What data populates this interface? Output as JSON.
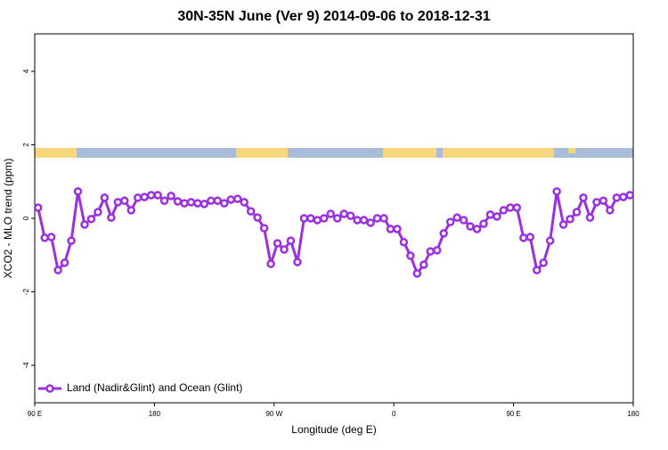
{
  "chart_data": {
    "type": "line",
    "title": "30N-35N June (Ver 9)   2014-09-06 to 2018-12-31",
    "x_label": "Longitude (deg E)",
    "y_label": "XCO2 - MLO trend (ppm)",
    "x": [
      92.5,
      97.5,
      102.5,
      107.5,
      112.5,
      117.5,
      122.5,
      127.5,
      132.5,
      137.5,
      142.5,
      147.5,
      152.5,
      157.5,
      162.5,
      167.5,
      172.5,
      177.5,
      182.5,
      187.5,
      192.5,
      197.5,
      202.5,
      207.5,
      212.5,
      217.5,
      222.5,
      227.5,
      232.5,
      237.5,
      242.5,
      247.5,
      252.5,
      257.5,
      262.5,
      267.5,
      272.5,
      277.5,
      282.5,
      287.5,
      292.5,
      297.5,
      302.5,
      307.5,
      312.5,
      317.5,
      322.5,
      327.5,
      332.5,
      337.5,
      342.5,
      347.5,
      352.5,
      357.5,
      362.5,
      367.5,
      372.5,
      377.5,
      382.5,
      387.5,
      392.5,
      397.5,
      402.5,
      407.5,
      412.5,
      417.5,
      422.5,
      427.5,
      432.5,
      437.5,
      442.5,
      447.5,
      452.5,
      457.5,
      462.5,
      467.5,
      472.5,
      477.5,
      482.5,
      487.5,
      492.5,
      497.5,
      502.5,
      507.5,
      512.5,
      517.5,
      522.5,
      527.5,
      532.5,
      537.5
    ],
    "series": [
      {
        "name": "Land (Nadir&Glint) and Ocean (Glint)",
        "color": "#9b30e0",
        "values": [
          0.29,
          -0.53,
          -0.51,
          -1.41,
          -1.21,
          -0.61,
          0.73,
          -0.17,
          -0.02,
          0.17,
          0.56,
          0.02,
          0.44,
          0.48,
          0.22,
          0.56,
          0.58,
          0.63,
          0.63,
          0.48,
          0.61,
          0.46,
          0.41,
          0.44,
          0.41,
          0.39,
          0.48,
          0.48,
          0.41,
          0.51,
          0.53,
          0.44,
          0.19,
          0.02,
          -0.27,
          -1.24,
          -0.68,
          -0.85,
          -0.61,
          -1.19,
          0,
          0,
          -0.05,
          0,
          0.12,
          0,
          0.12,
          0.07,
          -0.05,
          -0.05,
          -0.12,
          0,
          0,
          -0.29,
          -0.29,
          -0.65,
          -1.02,
          -1.5,
          -1.26,
          -0.9,
          -0.87,
          -0.41,
          -0.1,
          0.02,
          -0.05,
          -0.22,
          -0.29,
          -0.15,
          0.1,
          0.05,
          0.22,
          0.29,
          0.29,
          -0.53,
          -0.51,
          -1.41,
          -1.21,
          -0.61,
          0.73,
          -0.17,
          -0.02,
          0.17,
          0.56,
          0.02,
          0.44,
          0.48,
          0.22,
          0.56,
          0.58,
          0.63
        ]
      }
    ],
    "xlim": [
      90,
      540
    ],
    "xticks": [
      {
        "value": 90,
        "label": "90 E"
      },
      180,
      {
        "value": 270,
        "label": "90 W"
      },
      {
        "value": 360,
        "label": "0"
      },
      {
        "value": 450,
        "label": "90 E"
      },
      {
        "value": 540,
        "label": "180"
      }
    ],
    "ylim": [
      -5.02,
      5.02
    ],
    "yticks": [
      -4,
      -2,
      0,
      2,
      4
    ],
    "legend": "bottom-left"
  }
}
